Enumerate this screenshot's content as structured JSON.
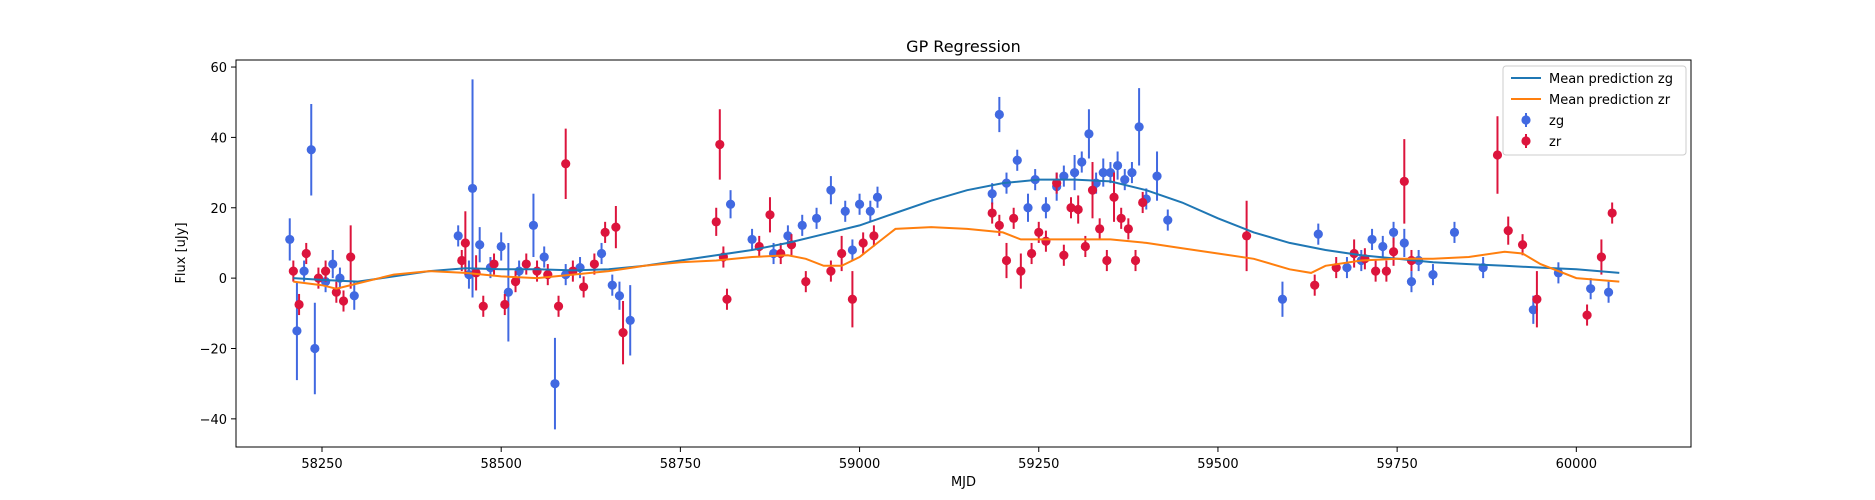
{
  "chart_data": {
    "type": "scatter",
    "title": "GP Regression",
    "xlabel": "MJD",
    "ylabel": "Flux [uJy]",
    "xlim": [
      58130,
      60160
    ],
    "ylim": [
      -48,
      62
    ],
    "x_ticks": [
      58250,
      58500,
      58750,
      59000,
      59250,
      59500,
      59750,
      60000
    ],
    "y_ticks": [
      -40,
      -20,
      0,
      20,
      40,
      60
    ],
    "grid": false,
    "legend_position": "top-right",
    "series": [
      {
        "name": "Mean prediction zg",
        "kind": "line",
        "color": "#1f77b4",
        "x": [
          58210,
          58250,
          58300,
          58350,
          58400,
          58450,
          58500,
          58550,
          58600,
          58650,
          58700,
          58750,
          58800,
          58850,
          58900,
          58950,
          59000,
          59050,
          59100,
          59150,
          59200,
          59250,
          59300,
          59350,
          59400,
          59450,
          59500,
          59550,
          59600,
          59650,
          59700,
          59750,
          59800,
          59850,
          59900,
          59950,
          60000,
          60060
        ],
        "y": [
          0,
          -0.5,
          -1,
          0.5,
          2,
          2.8,
          2.5,
          2.5,
          2.2,
          2.5,
          3.5,
          5,
          6.5,
          8,
          10,
          12.5,
          15,
          18.5,
          22,
          25,
          27,
          28,
          28,
          27.5,
          25,
          21.5,
          17,
          13,
          10,
          8,
          6.5,
          5.5,
          4.5,
          4,
          3.5,
          3,
          2.5,
          1.5
        ]
      },
      {
        "name": "Mean prediction zr",
        "kind": "line",
        "color": "#ff7f0e",
        "x": [
          58210,
          58250,
          58270,
          58300,
          58350,
          58400,
          58450,
          58500,
          58550,
          58600,
          58650,
          58700,
          58750,
          58800,
          58850,
          58900,
          58925,
          58950,
          58975,
          59000,
          59025,
          59050,
          59100,
          59150,
          59200,
          59225,
          59250,
          59300,
          59350,
          59400,
          59450,
          59500,
          59550,
          59600,
          59630,
          59650,
          59700,
          59750,
          59800,
          59850,
          59900,
          59925,
          59950,
          60000,
          60060
        ],
        "y": [
          -1,
          -2,
          -3,
          -1.5,
          1,
          2,
          1.5,
          0.5,
          0,
          1,
          2,
          3.5,
          4.5,
          5,
          6,
          6.5,
          5.5,
          3.5,
          3.5,
          6,
          10,
          14,
          14.5,
          14,
          13,
          11,
          11,
          11,
          11,
          10,
          8.5,
          7,
          5.5,
          2.5,
          1.5,
          3.5,
          5,
          5.5,
          5.5,
          6,
          7.5,
          7,
          4,
          0,
          -1
        ]
      },
      {
        "name": "zg",
        "kind": "errorbar",
        "color": "#4169e1",
        "x": [
          58205,
          58215,
          58225,
          58235,
          58240,
          58255,
          58265,
          58275,
          58295,
          58440,
          58455,
          58460,
          58470,
          58485,
          58500,
          58510,
          58525,
          58545,
          58560,
          58575,
          58590,
          58610,
          58640,
          58655,
          58665,
          58680,
          58820,
          58850,
          58880,
          58900,
          58920,
          58940,
          58960,
          58980,
          58990,
          59000,
          59015,
          59025,
          59185,
          59195,
          59205,
          59220,
          59235,
          59245,
          59260,
          59275,
          59285,
          59300,
          59310,
          59320,
          59330,
          59340,
          59350,
          59360,
          59370,
          59380,
          59390,
          59400,
          59415,
          59430,
          59590,
          59640,
          59680,
          59700,
          59715,
          59730,
          59745,
          59760,
          59770,
          59780,
          59800,
          59830,
          59870,
          59940,
          59975,
          60020,
          60045
        ],
        "y": [
          11,
          -15,
          2,
          36.5,
          -20,
          -1,
          4,
          0,
          -5,
          12,
          1,
          25.5,
          9.5,
          3,
          9,
          -4,
          2,
          15,
          6,
          -30,
          1,
          3,
          7,
          -2,
          -5,
          -12,
          21,
          11,
          7,
          12,
          15,
          17,
          25,
          19,
          8,
          21,
          19,
          23,
          24,
          46.5,
          27,
          33.5,
          20,
          28,
          20,
          26,
          29,
          30,
          33,
          41,
          27,
          30,
          30,
          32,
          28,
          30,
          43,
          22.5,
          29,
          16.5,
          -6,
          12.5,
          3,
          5,
          11,
          9,
          13,
          10,
          -1,
          5,
          1,
          13,
          3,
          -9,
          1.5,
          -3,
          -4
        ],
        "yerr": [
          6,
          14,
          3,
          13,
          13,
          3,
          4,
          3,
          4,
          3,
          4,
          31,
          5,
          3,
          4,
          14,
          3,
          9,
          3,
          13,
          3,
          3,
          3,
          3,
          4,
          10,
          4,
          3,
          3,
          3,
          3,
          3,
          4,
          3,
          3,
          3,
          3,
          3,
          3,
          5,
          3,
          3,
          4,
          3,
          3,
          4,
          3,
          5,
          3,
          7,
          3,
          4,
          3,
          4,
          3,
          3,
          11,
          3,
          7,
          3,
          5,
          3,
          3,
          3,
          3,
          3,
          3,
          4,
          3,
          3,
          3,
          3,
          3,
          4,
          3,
          3,
          3
        ]
      },
      {
        "name": "zr",
        "kind": "errorbar",
        "color": "#dc143c",
        "x": [
          58210,
          58218,
          58228,
          58245,
          58255,
          58270,
          58280,
          58290,
          58445,
          58450,
          58465,
          58475,
          58490,
          58505,
          58520,
          58535,
          58550,
          58565,
          58580,
          58590,
          58600,
          58615,
          58630,
          58645,
          58660,
          58670,
          58800,
          58805,
          58810,
          58815,
          58860,
          58875,
          58890,
          58905,
          58925,
          58960,
          58975,
          58990,
          59005,
          59020,
          59185,
          59195,
          59205,
          59215,
          59225,
          59240,
          59250,
          59260,
          59275,
          59285,
          59295,
          59305,
          59315,
          59325,
          59335,
          59345,
          59355,
          59365,
          59375,
          59385,
          59395,
          59540,
          59635,
          59665,
          59690,
          59705,
          59720,
          59735,
          59745,
          59760,
          59770,
          59890,
          59905,
          59925,
          59945,
          60015,
          60035,
          60050
        ],
        "y": [
          2,
          -7.5,
          7,
          0,
          2,
          -4,
          -6.5,
          6,
          5,
          10,
          1.5,
          -8,
          4,
          -7.5,
          -1,
          4,
          2,
          1,
          -8,
          32.5,
          2,
          -2.5,
          4,
          13,
          14.5,
          -15.5,
          16,
          38,
          6,
          -6,
          9,
          18,
          7,
          9.5,
          -1,
          2,
          7,
          -6,
          10,
          12,
          18.5,
          15,
          5,
          17,
          2,
          7,
          13,
          10.5,
          27,
          6.5,
          20,
          19.5,
          9,
          25,
          14,
          5,
          23,
          17,
          14,
          5,
          21.5,
          12,
          -2,
          3,
          7,
          5.5,
          2,
          2,
          7.5,
          27.5,
          5,
          35,
          13.5,
          9.5,
          -6,
          -10.5,
          6,
          18.5
        ],
        "yerr": [
          3,
          3,
          3,
          3,
          3,
          3,
          3,
          9,
          3,
          9,
          5,
          3,
          3,
          3,
          3,
          3,
          3,
          3,
          3,
          10,
          3,
          3,
          3,
          3,
          6,
          9,
          4,
          10,
          3,
          3,
          3,
          5,
          3,
          3,
          3,
          3,
          5,
          8,
          3,
          3,
          3,
          3,
          5,
          3,
          5,
          3,
          3,
          3,
          3,
          3,
          3,
          4,
          3,
          8,
          3,
          3,
          7,
          3,
          3,
          3,
          3,
          10,
          3,
          3,
          4,
          3,
          3,
          3,
          4,
          12,
          3,
          11,
          4,
          3,
          8,
          3,
          5,
          3
        ]
      }
    ]
  }
}
